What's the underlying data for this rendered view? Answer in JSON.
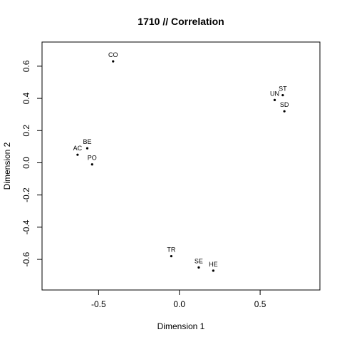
{
  "chart_data": {
    "type": "scatter",
    "title": "1710 // Correlation",
    "xlabel": "Dimension 1",
    "ylabel": "Dimension 2",
    "xlim": [
      -0.85,
      0.87
    ],
    "ylim": [
      -0.79,
      0.75
    ],
    "xticks": [
      -0.5,
      0.0,
      0.5
    ],
    "xtick_labels": [
      "-0.5",
      "0.0",
      "0.5"
    ],
    "yticks": [
      -0.6,
      -0.4,
      -0.2,
      0.0,
      0.2,
      0.4,
      0.6
    ],
    "ytick_labels": [
      "-0.6",
      "-0.4",
      "-0.2",
      "0.0",
      "0.2",
      "0.4",
      "0.6"
    ],
    "grid": false,
    "points": [
      {
        "label": "CO",
        "x": -0.41,
        "y": 0.63
      },
      {
        "label": "ST",
        "x": 0.64,
        "y": 0.42
      },
      {
        "label": "UN",
        "x": 0.59,
        "y": 0.39
      },
      {
        "label": "SD",
        "x": 0.65,
        "y": 0.32
      },
      {
        "label": "BE",
        "x": -0.57,
        "y": 0.09
      },
      {
        "label": "AC",
        "x": -0.63,
        "y": 0.05
      },
      {
        "label": "PO",
        "x": -0.54,
        "y": -0.01
      },
      {
        "label": "TR",
        "x": -0.05,
        "y": -0.58
      },
      {
        "label": "SE",
        "x": 0.12,
        "y": -0.65
      },
      {
        "label": "HE",
        "x": 0.21,
        "y": -0.67
      }
    ]
  }
}
